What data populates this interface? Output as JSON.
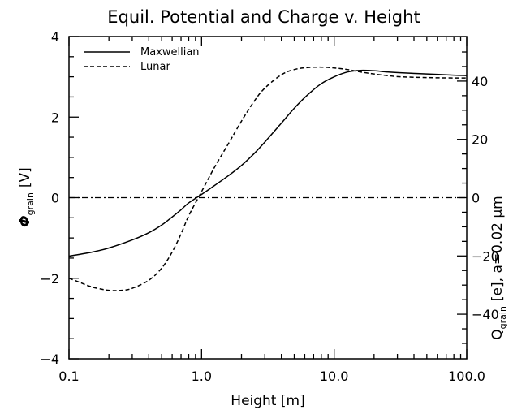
{
  "chart_data": {
    "type": "line",
    "title": "Equil. Potential and Charge v. Height",
    "xlabel": "Height [m]",
    "ylabel_main": "Φ",
    "ylabel_sub": "grain",
    "ylabel_unit": "[V]",
    "y2label_main": "Q",
    "y2label_sub": "grain",
    "y2label_rest": "[e], a=0.02 μm",
    "x_scale": "log",
    "xlim": [
      0.1,
      100.0
    ],
    "ylim": [
      -4,
      4
    ],
    "y2lim": [
      -55.3,
      55.3
    ],
    "x_ticks": [
      0.1,
      1.0,
      10.0,
      100.0
    ],
    "x_tick_labels": [
      "0.1",
      "1.0",
      "10.0",
      "100.0"
    ],
    "y_ticks": [
      -4,
      -2,
      0,
      2,
      4
    ],
    "y_tick_labels": [
      "−4",
      "−2",
      "0",
      "2",
      "4"
    ],
    "y2_ticks": [
      -40,
      -20,
      0,
      20,
      40
    ],
    "y2_tick_labels": [
      "−40",
      "−20",
      "0",
      "20",
      "40"
    ],
    "grid": false,
    "legend_position": "top-left",
    "reference_line": {
      "y": 0,
      "style": "dash-dot"
    },
    "series": [
      {
        "name": "Maxwellian",
        "style": "solid",
        "x": [
          0.1,
          0.15,
          0.2,
          0.3,
          0.4,
          0.5,
          0.6,
          0.7,
          0.8,
          1.0,
          1.25,
          1.6,
          2.0,
          2.5,
          3.0,
          4.0,
          5.0,
          6.3,
          8.0,
          10.0,
          12.6,
          15.8,
          20.0,
          25.1,
          31.6,
          50.1,
          79.4,
          100.0
        ],
        "y": [
          -1.45,
          -1.35,
          -1.25,
          -1.05,
          -0.87,
          -0.68,
          -0.48,
          -0.3,
          -0.13,
          0.08,
          0.3,
          0.55,
          0.8,
          1.1,
          1.38,
          1.85,
          2.22,
          2.55,
          2.83,
          3.0,
          3.12,
          3.16,
          3.15,
          3.12,
          3.1,
          3.07,
          3.04,
          3.03
        ]
      },
      {
        "name": "Lunar",
        "style": "dashed",
        "x": [
          0.1,
          0.12,
          0.15,
          0.2,
          0.25,
          0.3,
          0.4,
          0.5,
          0.6,
          0.7,
          0.8,
          1.0,
          1.25,
          1.6,
          2.0,
          2.5,
          3.0,
          4.0,
          5.0,
          6.3,
          8.0,
          10.0,
          12.6,
          15.8,
          20.0,
          25.1,
          31.6,
          50.1,
          79.4,
          100.0
        ],
        "y": [
          -2.0,
          -2.1,
          -2.22,
          -2.3,
          -2.3,
          -2.25,
          -2.05,
          -1.75,
          -1.35,
          -0.9,
          -0.45,
          0.15,
          0.75,
          1.35,
          1.9,
          2.4,
          2.72,
          3.05,
          3.18,
          3.23,
          3.24,
          3.22,
          3.18,
          3.12,
          3.07,
          3.03,
          3.0,
          2.98,
          2.97,
          2.97
        ]
      }
    ]
  }
}
